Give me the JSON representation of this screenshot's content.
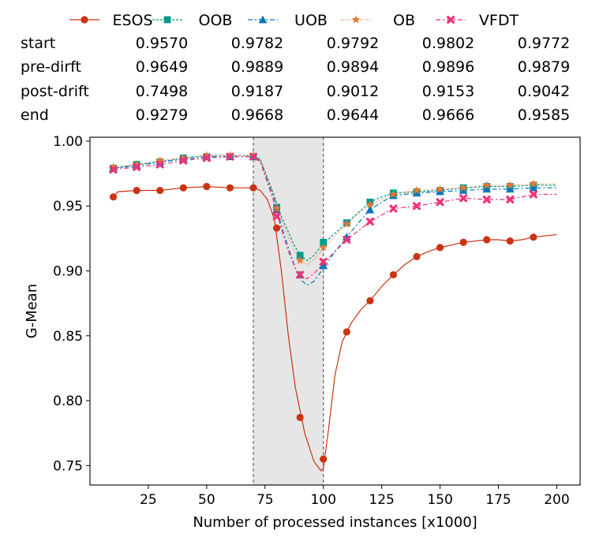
{
  "chart_data": {
    "type": "line",
    "xlabel": "Number of processed instances [x1000]",
    "ylabel": "G-Mean",
    "xlim": [
      0,
      210
    ],
    "ylim": [
      0.735,
      1.003
    ],
    "x_ticks": [
      25,
      50,
      75,
      100,
      125,
      150,
      175,
      200
    ],
    "x_tick_labels": [
      "25",
      "50",
      "75",
      "100",
      "125",
      "150",
      "175",
      "200"
    ],
    "y_ticks": [
      0.75,
      0.8,
      0.85,
      0.9,
      0.95,
      1.0
    ],
    "y_tick_labels": [
      "0.75",
      "0.80",
      "0.85",
      "0.90",
      "0.95",
      "1.00"
    ],
    "grid": false,
    "legend_position": "top",
    "drift_region": {
      "start": 70,
      "end": 100,
      "color": "#e6e6e6"
    },
    "x": [
      10,
      20,
      30,
      40,
      50,
      60,
      70,
      80,
      90,
      100,
      110,
      120,
      130,
      140,
      150,
      160,
      170,
      180,
      190
    ],
    "series": [
      {
        "name": "ESOS",
        "color": "#cc3311",
        "marker": "circle",
        "dash": "",
        "values": [
          0.957,
          0.962,
          0.962,
          0.964,
          0.965,
          0.964,
          0.964,
          0.933,
          0.787,
          0.755,
          0.853,
          0.877,
          0.897,
          0.911,
          0.918,
          0.922,
          0.924,
          0.923,
          0.926
        ],
        "curve": [
          [
            10,
            0.957
          ],
          [
            12,
            0.961
          ],
          [
            20,
            0.962
          ],
          [
            30,
            0.962
          ],
          [
            40,
            0.964
          ],
          [
            50,
            0.965
          ],
          [
            60,
            0.964
          ],
          [
            70,
            0.964
          ],
          [
            73,
            0.962
          ],
          [
            76,
            0.955
          ],
          [
            79,
            0.94
          ],
          [
            82,
            0.9
          ],
          [
            85,
            0.85
          ],
          [
            88,
            0.81
          ],
          [
            92,
            0.775
          ],
          [
            96,
            0.753
          ],
          [
            99,
            0.746
          ],
          [
            100,
            0.748
          ],
          [
            102,
            0.775
          ],
          [
            105,
            0.82
          ],
          [
            108,
            0.845
          ],
          [
            112,
            0.86
          ],
          [
            116,
            0.87
          ],
          [
            120,
            0.877
          ],
          [
            125,
            0.888
          ],
          [
            130,
            0.897
          ],
          [
            135,
            0.905
          ],
          [
            140,
            0.911
          ],
          [
            145,
            0.915
          ],
          [
            150,
            0.918
          ],
          [
            155,
            0.92
          ],
          [
            160,
            0.922
          ],
          [
            165,
            0.923
          ],
          [
            170,
            0.924
          ],
          [
            175,
            0.924
          ],
          [
            180,
            0.923
          ],
          [
            185,
            0.924
          ],
          [
            190,
            0.926
          ],
          [
            200,
            0.928
          ]
        ]
      },
      {
        "name": "OOB",
        "color": "#009988",
        "marker": "square",
        "dash": "3 2",
        "values": [
          0.979,
          0.982,
          0.984,
          0.987,
          0.988,
          0.988,
          0.988,
          0.949,
          0.912,
          0.922,
          0.937,
          0.953,
          0.96,
          0.961,
          0.962,
          0.964,
          0.965,
          0.965,
          0.966
        ],
        "curve": [
          [
            10,
            0.979
          ],
          [
            20,
            0.982
          ],
          [
            30,
            0.984
          ],
          [
            40,
            0.987
          ],
          [
            50,
            0.989
          ],
          [
            60,
            0.989
          ],
          [
            70,
            0.989
          ],
          [
            73,
            0.986
          ],
          [
            76,
            0.972
          ],
          [
            79,
            0.958
          ],
          [
            82,
            0.942
          ],
          [
            85,
            0.93
          ],
          [
            88,
            0.918
          ],
          [
            91,
            0.911
          ],
          [
            93,
            0.908
          ],
          [
            96,
            0.912
          ],
          [
            100,
            0.921
          ],
          [
            105,
            0.929
          ],
          [
            110,
            0.937
          ],
          [
            115,
            0.945
          ],
          [
            120,
            0.953
          ],
          [
            125,
            0.957
          ],
          [
            130,
            0.96
          ],
          [
            140,
            0.961
          ],
          [
            150,
            0.962
          ],
          [
            160,
            0.964
          ],
          [
            170,
            0.965
          ],
          [
            180,
            0.965
          ],
          [
            190,
            0.966
          ],
          [
            200,
            0.966
          ]
        ]
      },
      {
        "name": "UOB",
        "color": "#0077bb",
        "marker": "triangle",
        "dash": "6 3 2 3",
        "values": [
          0.979,
          0.981,
          0.984,
          0.986,
          0.988,
          0.988,
          0.988,
          0.947,
          0.897,
          0.904,
          0.926,
          0.947,
          0.958,
          0.96,
          0.961,
          0.962,
          0.963,
          0.963,
          0.964
        ],
        "curve": [
          [
            10,
            0.979
          ],
          [
            20,
            0.981
          ],
          [
            30,
            0.984
          ],
          [
            40,
            0.986
          ],
          [
            50,
            0.988
          ],
          [
            60,
            0.988
          ],
          [
            70,
            0.988
          ],
          [
            73,
            0.985
          ],
          [
            76,
            0.97
          ],
          [
            79,
            0.955
          ],
          [
            82,
            0.935
          ],
          [
            85,
            0.918
          ],
          [
            88,
            0.902
          ],
          [
            91,
            0.892
          ],
          [
            93,
            0.889
          ],
          [
            96,
            0.892
          ],
          [
            100,
            0.902
          ],
          [
            105,
            0.915
          ],
          [
            110,
            0.926
          ],
          [
            115,
            0.937
          ],
          [
            120,
            0.947
          ],
          [
            125,
            0.953
          ],
          [
            130,
            0.958
          ],
          [
            140,
            0.96
          ],
          [
            150,
            0.961
          ],
          [
            160,
            0.962
          ],
          [
            170,
            0.963
          ],
          [
            180,
            0.963
          ],
          [
            190,
            0.964
          ],
          [
            200,
            0.964
          ]
        ]
      },
      {
        "name": "OB",
        "color": "#ee7733",
        "marker": "star",
        "dash": "1 2",
        "values": [
          0.98,
          0.982,
          0.985,
          0.987,
          0.989,
          0.989,
          0.989,
          0.948,
          0.908,
          0.918,
          0.936,
          0.951,
          0.959,
          0.962,
          0.963,
          0.964,
          0.966,
          0.966,
          0.967
        ],
        "curve": [
          [
            10,
            0.98
          ],
          [
            20,
            0.982
          ],
          [
            30,
            0.985
          ],
          [
            40,
            0.987
          ],
          [
            50,
            0.989
          ],
          [
            60,
            0.989
          ],
          [
            70,
            0.989
          ],
          [
            73,
            0.986
          ],
          [
            76,
            0.971
          ],
          [
            79,
            0.957
          ],
          [
            82,
            0.94
          ],
          [
            85,
            0.926
          ],
          [
            88,
            0.914
          ],
          [
            91,
            0.907
          ],
          [
            93,
            0.905
          ],
          [
            96,
            0.909
          ],
          [
            100,
            0.917
          ],
          [
            105,
            0.927
          ],
          [
            110,
            0.936
          ],
          [
            115,
            0.944
          ],
          [
            120,
            0.951
          ],
          [
            125,
            0.955
          ],
          [
            130,
            0.959
          ],
          [
            140,
            0.962
          ],
          [
            150,
            0.963
          ],
          [
            160,
            0.964
          ],
          [
            170,
            0.966
          ],
          [
            180,
            0.966
          ],
          [
            190,
            0.967
          ],
          [
            200,
            0.967
          ]
        ]
      },
      {
        "name": "VFDT",
        "color": "#ee3377",
        "marker": "x",
        "dash": "6 3 2 3",
        "values": [
          0.978,
          0.98,
          0.982,
          0.985,
          0.987,
          0.988,
          0.988,
          0.942,
          0.897,
          0.907,
          0.924,
          0.938,
          0.948,
          0.95,
          0.953,
          0.956,
          0.955,
          0.955,
          0.959
        ],
        "curve": [
          [
            10,
            0.978
          ],
          [
            20,
            0.98
          ],
          [
            30,
            0.982
          ],
          [
            40,
            0.985
          ],
          [
            50,
            0.987
          ],
          [
            60,
            0.988
          ],
          [
            70,
            0.988
          ],
          [
            73,
            0.984
          ],
          [
            76,
            0.968
          ],
          [
            79,
            0.952
          ],
          [
            82,
            0.932
          ],
          [
            85,
            0.915
          ],
          [
            88,
            0.902
          ],
          [
            91,
            0.895
          ],
          [
            93,
            0.894
          ],
          [
            96,
            0.898
          ],
          [
            100,
            0.906
          ],
          [
            105,
            0.915
          ],
          [
            110,
            0.924
          ],
          [
            115,
            0.931
          ],
          [
            120,
            0.938
          ],
          [
            125,
            0.943
          ],
          [
            130,
            0.948
          ],
          [
            140,
            0.95
          ],
          [
            150,
            0.953
          ],
          [
            160,
            0.956
          ],
          [
            170,
            0.955
          ],
          [
            180,
            0.955
          ],
          [
            190,
            0.959
          ],
          [
            200,
            0.959
          ]
        ]
      }
    ],
    "summary_table": {
      "rows": [
        {
          "label": "start",
          "values": [
            "0.9570",
            "0.9782",
            "0.9792",
            "0.9802",
            "0.9772"
          ]
        },
        {
          "label": "pre-dirft",
          "values": [
            "0.9649",
            "0.9889",
            "0.9894",
            "0.9896",
            "0.9879"
          ]
        },
        {
          "label": "post-drift",
          "values": [
            "0.7498",
            "0.9187",
            "0.9012",
            "0.9153",
            "0.9042"
          ]
        },
        {
          "label": "end",
          "values": [
            "0.9279",
            "0.9668",
            "0.9644",
            "0.9666",
            "0.9585"
          ]
        }
      ]
    }
  }
}
